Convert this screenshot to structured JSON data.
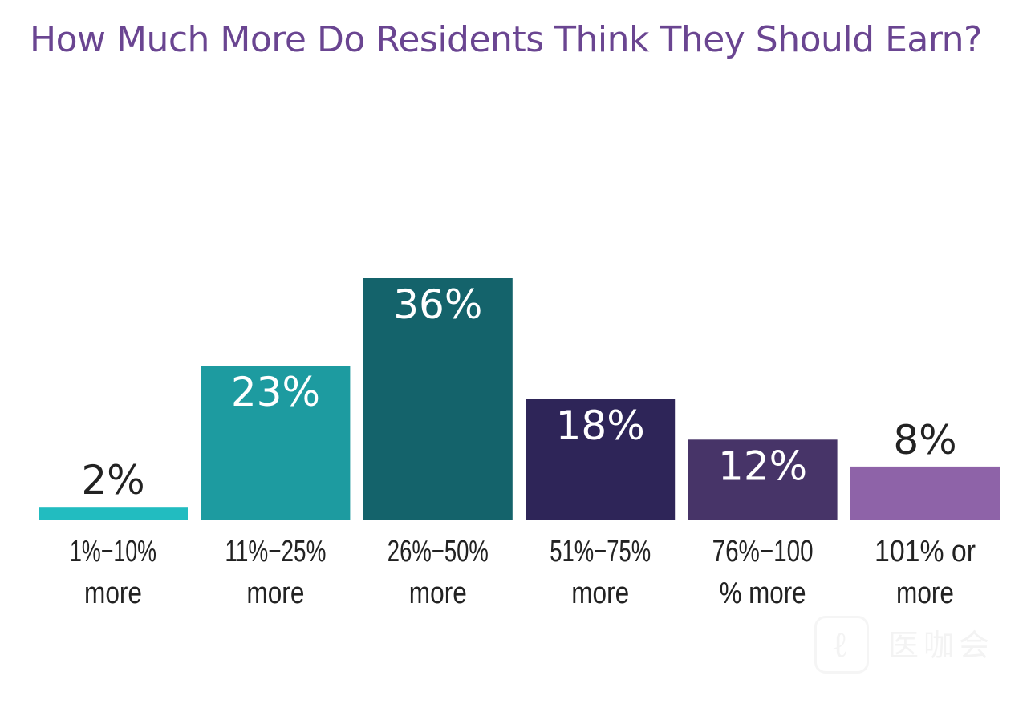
{
  "chart_data": {
    "type": "bar",
    "title": "How Much More Do Residents Think They Should Earn?",
    "xlabel": "",
    "ylabel": "",
    "ylim": [
      0,
      36
    ],
    "grid": false,
    "legend": "none",
    "categories": [
      [
        "1%−10%",
        "more"
      ],
      [
        "11%−25%",
        "more"
      ],
      [
        "26%−50%",
        "more"
      ],
      [
        "51%−75%",
        "more"
      ],
      [
        "76%−100",
        "% more"
      ],
      [
        "101% or",
        "more"
      ]
    ],
    "values": [
      2,
      23,
      36,
      18,
      12,
      8
    ],
    "value_labels": [
      "2%",
      "23%",
      "36%",
      "18%",
      "12%",
      "8%"
    ],
    "label_position": [
      "above",
      "inside",
      "inside",
      "inside",
      "inside",
      "above"
    ],
    "colors": [
      "#22bcc0",
      "#1d9ba0",
      "#14636b",
      "#2e2558",
      "#473468",
      "#8e63a8"
    ],
    "label_colors": [
      "#222222",
      "#ffffff",
      "#ffffff",
      "#ffffff",
      "#ffffff",
      "#222222"
    ]
  },
  "watermark": {
    "text": "医咖会",
    "icon": "yikahui-logo-icon"
  },
  "colors": {
    "title": "#6a4591",
    "tick_label": "#222222"
  }
}
